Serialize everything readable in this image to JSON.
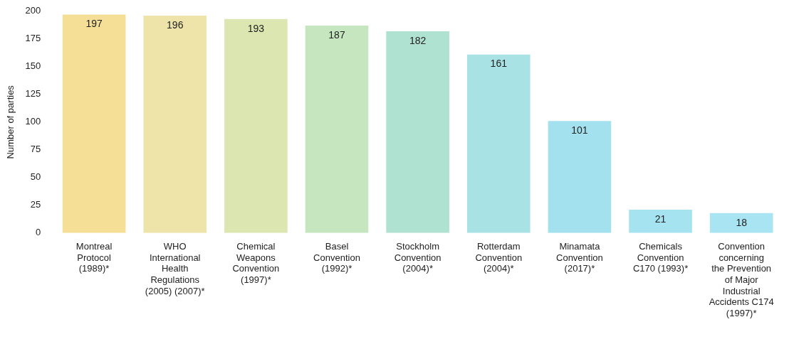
{
  "chart_data": {
    "type": "bar",
    "ylabel": "Number of parties",
    "categories": [
      "Montreal\nProtocol\n(1989)*",
      "WHO\nInternational\nHealth\nRegulations\n(2005) (2007)*",
      "Chemical\nWeapons\nConvention\n(1997)*",
      "Basel\nConvention\n(1992)*",
      "Stockholm\nConvention\n(2004)*",
      "Rotterdam\nConvention\n(2004)*",
      "Minamata\nConvention\n(2017)*",
      "Chemicals\nConvention\nC170 (1993)*",
      "Convention\nconcerning\nthe Prevention\nof Major\nIndustrial\nAccidents C174\n(1997)*"
    ],
    "values": [
      197,
      196,
      193,
      187,
      182,
      161,
      101,
      21,
      18
    ],
    "colors": [
      "#f5df96",
      "#eee3a8",
      "#dbe6b0",
      "#c6e6c0",
      "#b0e2d2",
      "#a8e2e4",
      "#a4e1ee",
      "#a6e3f0",
      "#a8e4f1"
    ],
    "ylim": [
      0,
      200
    ],
    "yticks": [
      0,
      25,
      50,
      75,
      100,
      125,
      150,
      175,
      200
    ],
    "data_labels": true,
    "grid": false,
    "legend": false
  }
}
